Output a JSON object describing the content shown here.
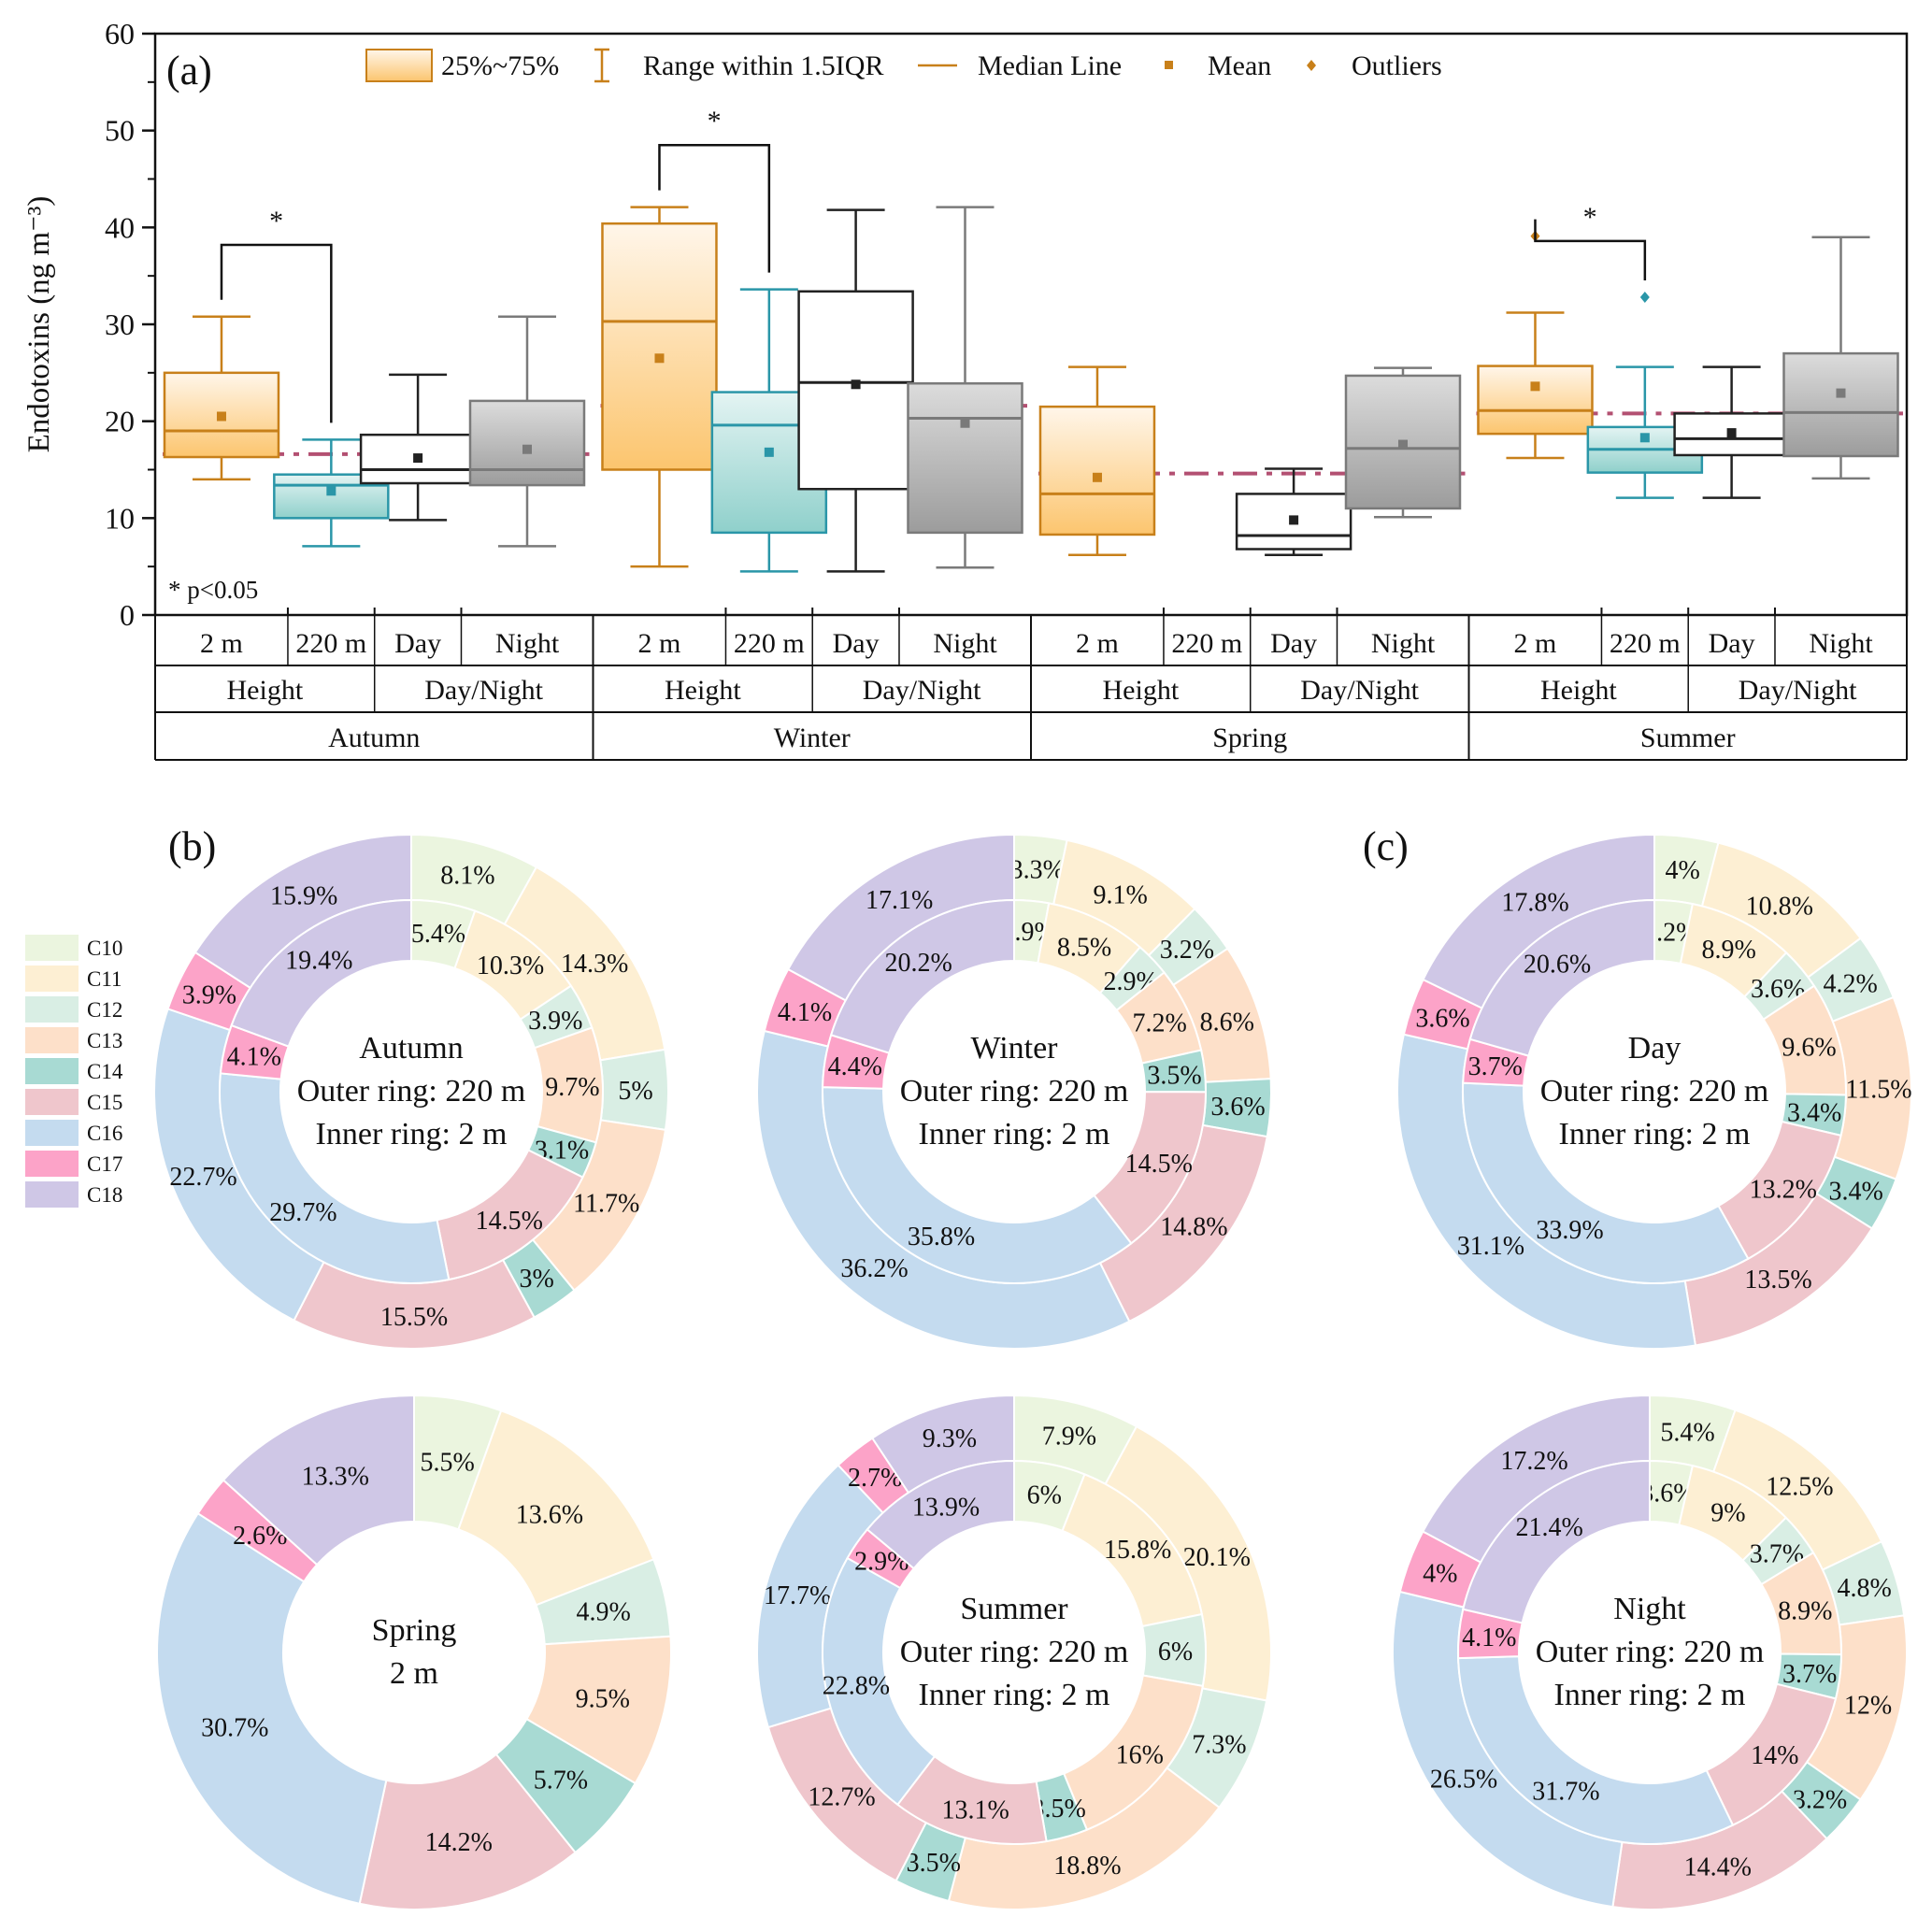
{
  "chart_data": [
    {
      "type": "box",
      "panel_label": "(a)",
      "ylabel": "Endotoxins (ng m⁻³)",
      "ylim": [
        0,
        60
      ],
      "yticks": [
        0,
        10,
        20,
        30,
        40,
        50,
        60
      ],
      "note": "* p<0.05",
      "legend": {
        "placement": "top",
        "items": [
          {
            "key": "box",
            "label": "25%~75%"
          },
          {
            "key": "whisker",
            "label": "Range within 1.5IQR"
          },
          {
            "key": "median",
            "label": "Median Line"
          },
          {
            "key": "mean",
            "label": "Mean"
          },
          {
            "key": "outlier",
            "label": "Outliers"
          }
        ]
      },
      "colors": {
        "orange": "#c8801a",
        "teal": "#2a96a8",
        "black": "#222222",
        "gray": "#7a7a7a",
        "refline": "#a6325a"
      },
      "seasons": [
        {
          "name": "Autumn",
          "group_labels": [
            "Height",
            "Day/Night"
          ],
          "reference": 16.6,
          "significance": {
            "between": [
              0,
              1
            ],
            "label": "*",
            "y": 38.2
          },
          "boxes": [
            {
              "label": "2 m",
              "style": "orange",
              "min": 14,
              "q1": 16.3,
              "median": 19,
              "q3": 25,
              "max": 30.8,
              "mean": 20.5,
              "outliers": []
            },
            {
              "label": "220 m",
              "style": "teal",
              "min": 7.1,
              "q1": 10,
              "median": 13.4,
              "q3": 14.5,
              "max": 18.1,
              "mean": 12.8,
              "outliers": []
            },
            {
              "label": "Day",
              "style": "black",
              "min": 9.8,
              "q1": 13.6,
              "median": 15,
              "q3": 18.6,
              "max": 24.8,
              "mean": 16.2,
              "outliers": []
            },
            {
              "label": "Night",
              "style": "gray",
              "min": 7.1,
              "q1": 13.4,
              "median": 15,
              "q3": 22.1,
              "max": 30.8,
              "mean": 17.1,
              "outliers": []
            }
          ]
        },
        {
          "name": "Winter",
          "group_labels": [
            "Height",
            "Day/Night"
          ],
          "reference": 21.6,
          "significance": {
            "between": [
              0,
              1
            ],
            "label": "*",
            "y": 48.5
          },
          "boxes": [
            {
              "label": "2 m",
              "style": "orange",
              "min": 5,
              "q1": 15,
              "median": 30.3,
              "q3": 40.4,
              "max": 42.1,
              "mean": 26.5,
              "outliers": []
            },
            {
              "label": "220 m",
              "style": "teal",
              "min": 4.5,
              "q1": 8.5,
              "median": 19.6,
              "q3": 23,
              "max": 33.6,
              "mean": 16.8,
              "outliers": []
            },
            {
              "label": "Day",
              "style": "black",
              "min": 4.5,
              "q1": 13,
              "median": 24,
              "q3": 33.4,
              "max": 41.8,
              "mean": 23.8,
              "outliers": []
            },
            {
              "label": "Night",
              "style": "gray",
              "min": 4.9,
              "q1": 8.5,
              "median": 20.3,
              "q3": 23.9,
              "max": 42.1,
              "mean": 19.8,
              "outliers": []
            }
          ]
        },
        {
          "name": "Spring",
          "group_labels": [
            "Height",
            "Day/Night"
          ],
          "reference": 14.6,
          "significance": null,
          "boxes": [
            {
              "label": "2 m",
              "style": "orange",
              "min": 6.2,
              "q1": 8.3,
              "median": 12.5,
              "q3": 21.5,
              "max": 25.6,
              "mean": 14.2,
              "outliers": []
            },
            {
              "label": "220 m",
              "style": "none"
            },
            {
              "label": "Day",
              "style": "black",
              "min": 6.2,
              "q1": 6.8,
              "median": 8.2,
              "q3": 12.5,
              "max": 15.1,
              "mean": 9.8,
              "outliers": []
            },
            {
              "label": "Night",
              "style": "gray",
              "min": 10.1,
              "q1": 11,
              "median": 17.2,
              "q3": 24.7,
              "max": 25.5,
              "mean": 17.6,
              "outliers": []
            }
          ]
        },
        {
          "name": "Summer",
          "group_labels": [
            "Height",
            "Day/Night"
          ],
          "reference": 20.8,
          "significance": {
            "between": [
              0,
              1
            ],
            "label": "*",
            "y": 38.6
          },
          "boxes": [
            {
              "label": "2 m",
              "style": "orange",
              "min": 16.2,
              "q1": 18.7,
              "median": 21.1,
              "q3": 25.7,
              "max": 31.2,
              "mean": 23.6,
              "outliers": [
                39.1
              ]
            },
            {
              "label": "220 m",
              "style": "teal",
              "min": 12.1,
              "q1": 14.7,
              "median": 17.1,
              "q3": 19.4,
              "max": 25.6,
              "mean": 18.3,
              "outliers": [
                32.8
              ]
            },
            {
              "label": "Day",
              "style": "black",
              "min": 12.1,
              "q1": 16.5,
              "median": 18.2,
              "q3": 20.8,
              "max": 25.6,
              "mean": 18.8,
              "outliers": []
            },
            {
              "label": "Night",
              "style": "gray",
              "min": 14.1,
              "q1": 16.4,
              "median": 20.9,
              "q3": 27,
              "max": 39,
              "mean": 22.9,
              "outliers": []
            }
          ]
        }
      ]
    },
    {
      "type": "pie",
      "panel_label": "(b)",
      "categories": [
        "C10",
        "C11",
        "C12",
        "C13",
        "C14",
        "C15",
        "C16",
        "C17",
        "C18"
      ],
      "category_colors": [
        "#ebf5df",
        "#fdefd3",
        "#d9eee4",
        "#fde0c9",
        "#a8dad3",
        "#efc6cc",
        "#c4dbef",
        "#fca3c8",
        "#cfc7e6"
      ],
      "legend_placement": "left",
      "donuts": [
        {
          "title": [
            "Autumn",
            "Outer ring: 220 m",
            "Inner ring: 2 m"
          ],
          "outer": [
            8.1,
            14.3,
            5,
            11.7,
            3,
            15.5,
            22.7,
            3.9,
            15.9
          ],
          "inner": [
            5.4,
            10.3,
            3.9,
            9.7,
            3.1,
            14.5,
            29.7,
            4.1,
            19.4
          ]
        },
        {
          "title": [
            "Winter",
            "Outer ring: 220 m",
            "Inner ring: 2 m"
          ],
          "outer": [
            3.3,
            9.1,
            3.2,
            8.6,
            3.6,
            14.8,
            36.2,
            4.1,
            17.1
          ],
          "inner": [
            2.9,
            8.5,
            2.9,
            7.2,
            3.5,
            14.5,
            35.8,
            4.4,
            20.2
          ]
        },
        {
          "title": [
            "Spring",
            "2 m"
          ],
          "outer": null,
          "inner": [
            5.5,
            13.6,
            4.9,
            9.5,
            5.7,
            14.2,
            30.7,
            2.6,
            13.3
          ]
        },
        {
          "title": [
            "Summer",
            "Outer ring: 220 m",
            "Inner ring: 2 m"
          ],
          "outer": [
            7.9,
            20.1,
            7.3,
            18.8,
            3.5,
            12.7,
            17.7,
            2.7,
            9.3
          ],
          "inner": [
            6,
            15.8,
            6,
            16,
            3.5,
            13.1,
            22.8,
            2.9,
            13.9
          ]
        }
      ]
    },
    {
      "type": "pie",
      "panel_label": "(c)",
      "categories": [
        "C10",
        "C11",
        "C12",
        "C13",
        "C14",
        "C15",
        "C16",
        "C17",
        "C18"
      ],
      "donuts": [
        {
          "title": [
            "Day",
            "Outer ring: 220 m",
            "Inner ring: 2 m"
          ],
          "outer": [
            4,
            10.8,
            4.2,
            11.5,
            3.4,
            13.5,
            31.1,
            3.6,
            17.8
          ],
          "inner": [
            3.2,
            8.9,
            3.6,
            9.6,
            3.4,
            13.2,
            33.9,
            3.7,
            20.6
          ]
        },
        {
          "title": [
            "Night",
            "Outer ring: 220 m",
            "Inner ring: 2 m"
          ],
          "outer": [
            5.4,
            12.5,
            4.8,
            12,
            3.2,
            14.4,
            26.5,
            4,
            17.2
          ],
          "inner": [
            3.6,
            9,
            3.7,
            8.9,
            3.7,
            14,
            31.7,
            4.1,
            21.4
          ]
        }
      ]
    }
  ]
}
